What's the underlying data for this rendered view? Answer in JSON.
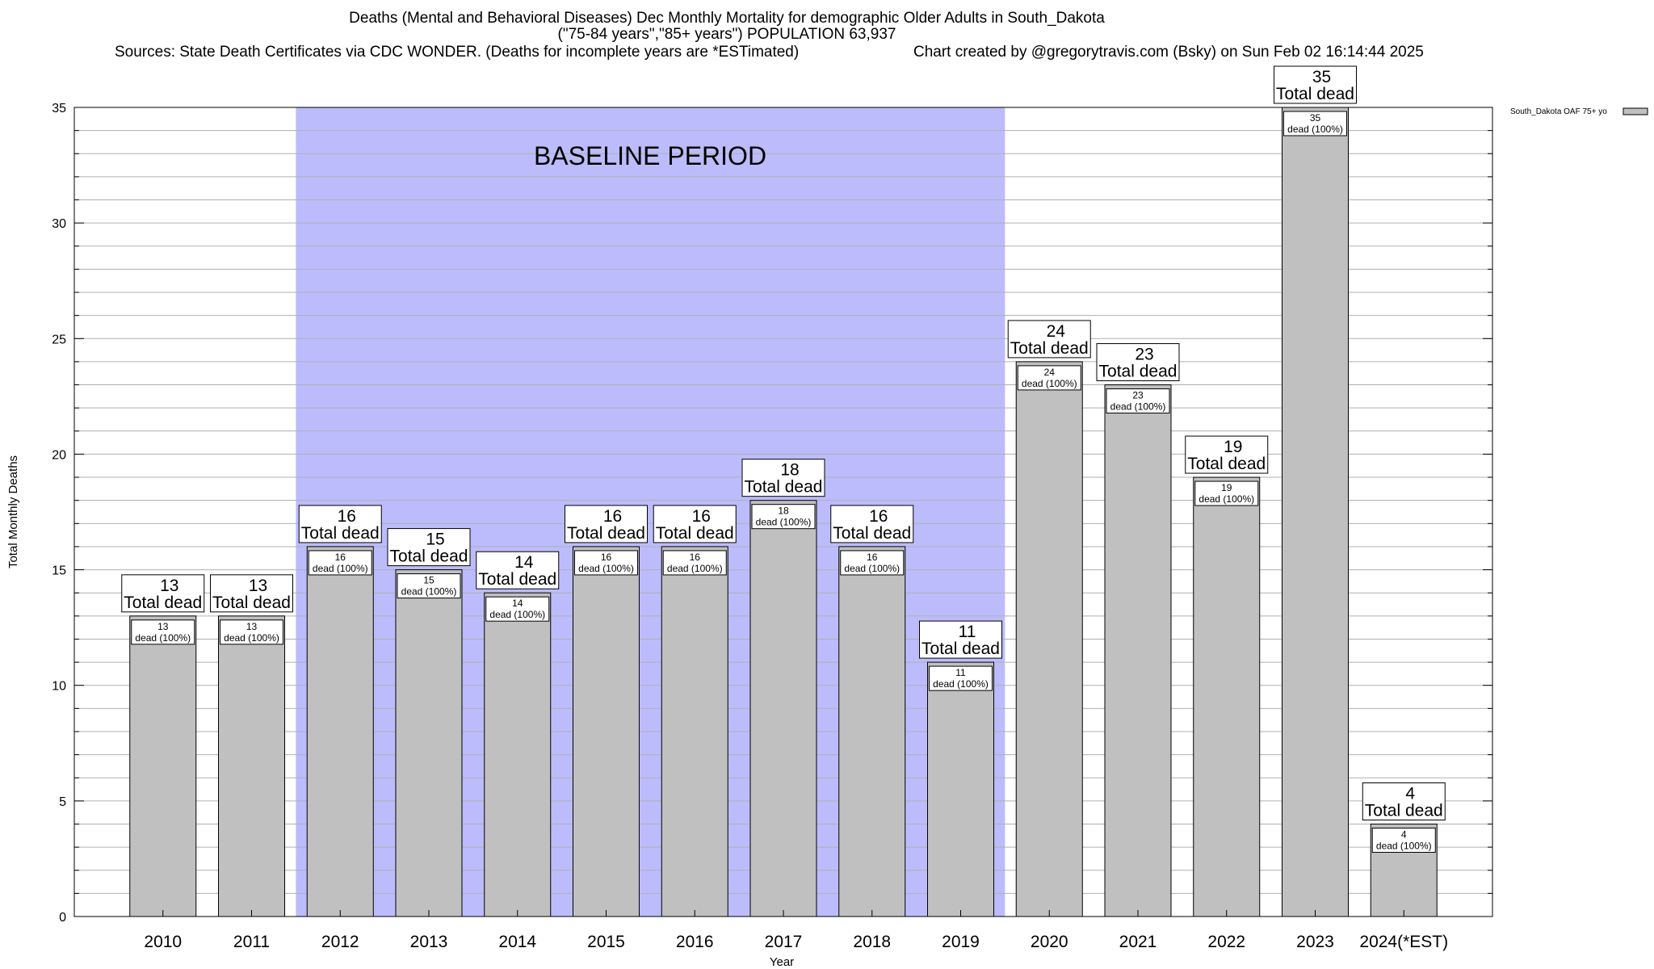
{
  "header": {
    "title_line1": "Deaths (Mental and Behavioral Diseases) Dec Monthly Mortality for demographic Older Adults in South_Dakota",
    "title_line2": "(\"75-84 years\",\"85+ years\") POPULATION 63,937",
    "sources": "Sources: State Death Certificates via CDC WONDER. (Deaths for incomplete years are *ESTimated)",
    "credit": "Chart created by @gregorytravis.com (Bsky) on Sun Feb 02 16:14:44 2025"
  },
  "chart_data": {
    "type": "bar",
    "xlabel": "Year",
    "ylabel": "Total Monthly Deaths",
    "ylim": [
      0,
      35
    ],
    "yticks": [
      0,
      5,
      10,
      15,
      20,
      25,
      30,
      35
    ],
    "grid": true,
    "legend_position": "top-right",
    "categories": [
      "2010",
      "2011",
      "2012",
      "2013",
      "2014",
      "2015",
      "2016",
      "2017",
      "2018",
      "2019",
      "2020",
      "2021",
      "2022",
      "2023",
      "2024(*EST)"
    ],
    "series": [
      {
        "name": "South_Dakota OAF 75+ yo",
        "color": "#c0c0c0",
        "values": [
          13,
          13,
          16,
          15,
          14,
          16,
          16,
          18,
          16,
          11,
          24,
          23,
          19,
          35,
          4
        ]
      }
    ],
    "total_label_suffix": "Total dead",
    "inner_label_suffix": "dead (100%)",
    "baseline": {
      "label": "BASELINE PERIOD",
      "start": "2012",
      "end": "2019",
      "color": "#bcbcfc"
    }
  }
}
